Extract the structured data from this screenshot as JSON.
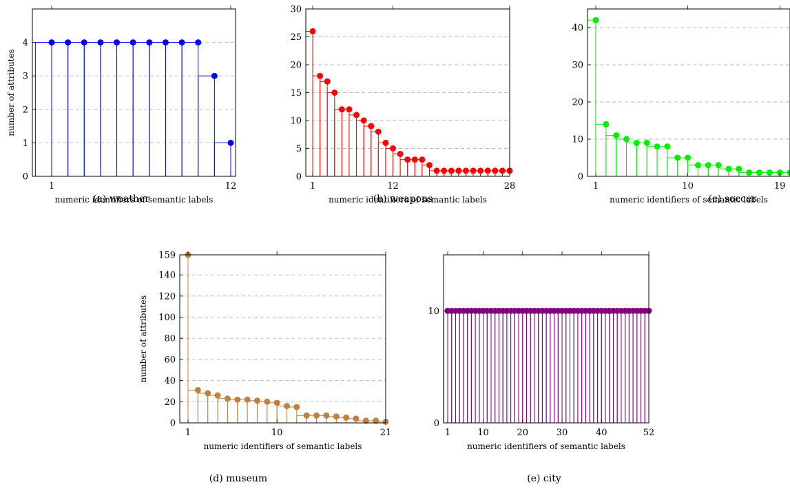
{
  "chart_data": [
    {
      "id": "a",
      "type": "bar",
      "caption": "(a) weather",
      "xlabel": "numeric identifiers of semantic labels",
      "ylabel": "number of attributes",
      "x": [
        1,
        2,
        3,
        4,
        5,
        6,
        7,
        8,
        9,
        10,
        11,
        12
      ],
      "values": [
        4,
        4,
        4,
        4,
        4,
        4,
        4,
        4,
        4,
        4,
        3,
        1
      ],
      "xticks": [
        1,
        12
      ],
      "yticks": [
        0,
        1,
        2,
        3,
        4
      ],
      "xlim": [
        1,
        12
      ],
      "ylim": [
        0,
        5
      ],
      "color": "#0000ff",
      "grid": "horizontal dashed"
    },
    {
      "id": "b",
      "type": "bar",
      "caption": "(b) weapons",
      "xlabel": "numeric identifiers of semantic labels",
      "ylabel": "",
      "x": [
        1,
        2,
        3,
        4,
        5,
        6,
        7,
        8,
        9,
        10,
        11,
        12,
        13,
        14,
        15,
        16,
        17,
        18,
        19,
        20,
        21,
        22,
        23,
        24,
        25,
        26,
        27,
        28
      ],
      "values": [
        26,
        18,
        17,
        15,
        12,
        12,
        11,
        10,
        9,
        8,
        6,
        5,
        4,
        3,
        3,
        3,
        2,
        1,
        1,
        1,
        1,
        1,
        1,
        1,
        1,
        1,
        1,
        1
      ],
      "xticks": [
        1,
        12,
        28
      ],
      "yticks": [
        0,
        5,
        10,
        15,
        20,
        25,
        30
      ],
      "xlim": [
        1,
        28
      ],
      "ylim": [
        0,
        30
      ],
      "color": "#ff0000",
      "grid": "horizontal dashed"
    },
    {
      "id": "c",
      "type": "bar",
      "caption": "(c) soccer",
      "xlabel": "numeric identifiers of semantic labels",
      "ylabel": "",
      "x": [
        1,
        2,
        3,
        4,
        5,
        6,
        7,
        8,
        9,
        10,
        11,
        12,
        13,
        14,
        15,
        16,
        17,
        18,
        19,
        20
      ],
      "values": [
        42,
        14,
        11,
        10,
        9,
        9,
        8,
        8,
        5,
        5,
        3,
        3,
        3,
        2,
        2,
        1,
        1,
        1,
        1,
        1
      ],
      "xticks": [
        1,
        10,
        19
      ],
      "yticks": [
        0,
        10,
        20,
        30,
        40
      ],
      "xlim": [
        1,
        20
      ],
      "ylim": [
        0,
        45
      ],
      "color": "#00ee00",
      "grid": "horizontal dashed"
    },
    {
      "id": "d",
      "type": "bar",
      "caption": "(d) museum",
      "xlabel": "numeric identifiers of semantic labels",
      "ylabel": "number of attributes",
      "x": [
        1,
        2,
        3,
        4,
        5,
        6,
        7,
        8,
        9,
        10,
        11,
        12,
        13,
        14,
        15,
        16,
        17,
        18,
        19,
        20,
        21
      ],
      "values": [
        159,
        31,
        28,
        26,
        23,
        22,
        22,
        21,
        20,
        19,
        16,
        15,
        7,
        7,
        7,
        6,
        5,
        4,
        2,
        2,
        1
      ],
      "xticks": [
        1,
        10,
        21
      ],
      "yticks": [
        0,
        20,
        40,
        60,
        80,
        100,
        120,
        140,
        159
      ],
      "xlim": [
        1,
        21
      ],
      "ylim": [
        0,
        159
      ],
      "color": "#bf8040",
      "grid": "horizontal dashed"
    },
    {
      "id": "e",
      "type": "bar",
      "caption": "(e) city",
      "xlabel": "numeric identifiers of semantic labels",
      "ylabel": "",
      "x": [
        1,
        2,
        3,
        4,
        5,
        6,
        7,
        8,
        9,
        10,
        11,
        12,
        13,
        14,
        15,
        16,
        17,
        18,
        19,
        20,
        21,
        22,
        23,
        24,
        25,
        26,
        27,
        28,
        29,
        30,
        31,
        32,
        33,
        34,
        35,
        36,
        37,
        38,
        39,
        40,
        41,
        42,
        43,
        44,
        45,
        46,
        47,
        48,
        49,
        50,
        51,
        52
      ],
      "values": [
        10,
        10,
        10,
        10,
        10,
        10,
        10,
        10,
        10,
        10,
        10,
        10,
        10,
        10,
        10,
        10,
        10,
        10,
        10,
        10,
        10,
        10,
        10,
        10,
        10,
        10,
        10,
        10,
        10,
        10,
        10,
        10,
        10,
        10,
        10,
        10,
        10,
        10,
        10,
        10,
        10,
        10,
        10,
        10,
        10,
        10,
        10,
        10,
        10,
        10,
        10,
        10
      ],
      "xticks": [
        1,
        10,
        20,
        30,
        40,
        52
      ],
      "yticks": [
        0,
        10
      ],
      "xlim": [
        1,
        52
      ],
      "ylim": [
        0,
        15
      ],
      "color": "#800080",
      "grid": "none"
    }
  ]
}
